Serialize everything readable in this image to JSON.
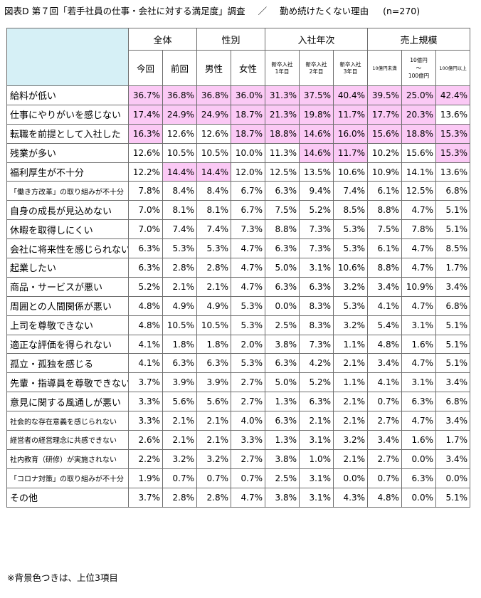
{
  "title": {
    "figure": "図表D",
    "survey": "第７回「若手社員の仕事・会社に対する満足度」調査",
    "separator": "／",
    "topic": "勤め続けたくない理由",
    "n": "(n=270)"
  },
  "groups": [
    "全体",
    "性別",
    "入社年次",
    "売上規模"
  ],
  "columns": [
    [
      "今回"
    ],
    [
      "前回"
    ],
    [
      "男性"
    ],
    [
      "女性"
    ],
    [
      "新卒入社",
      "1年目"
    ],
    [
      "新卒入社",
      "2年目"
    ],
    [
      "新卒入社",
      "3年目"
    ],
    [
      "10億円未満"
    ],
    [
      "10億円",
      "～",
      "100億円"
    ],
    [
      "100億円以上"
    ]
  ],
  "rows": [
    {
      "label": "給料が低い",
      "values": [
        "36.7%",
        "36.8%",
        "36.8%",
        "36.0%",
        "31.3%",
        "37.5%",
        "40.4%",
        "39.5%",
        "25.0%",
        "42.4%"
      ],
      "highlight": [
        1,
        1,
        1,
        1,
        1,
        1,
        1,
        1,
        1,
        1
      ]
    },
    {
      "label": "仕事にやりがいを感じない",
      "values": [
        "17.4%",
        "24.9%",
        "24.9%",
        "18.7%",
        "21.3%",
        "19.8%",
        "11.7%",
        "17.7%",
        "20.3%",
        "13.6%"
      ],
      "highlight": [
        1,
        1,
        1,
        1,
        1,
        1,
        1,
        1,
        1,
        0
      ]
    },
    {
      "label": "転職を前提として入社した",
      "values": [
        "16.3%",
        "12.6%",
        "12.6%",
        "18.7%",
        "18.8%",
        "14.6%",
        "16.0%",
        "15.6%",
        "18.8%",
        "15.3%"
      ],
      "highlight": [
        1,
        0,
        0,
        1,
        1,
        1,
        1,
        1,
        1,
        1
      ]
    },
    {
      "label": "残業が多い",
      "values": [
        "12.6%",
        "10.5%",
        "10.5%",
        "10.0%",
        "11.3%",
        "14.6%",
        "11.7%",
        "10.2%",
        "15.6%",
        "15.3%"
      ],
      "highlight": [
        0,
        0,
        0,
        0,
        0,
        1,
        1,
        0,
        0,
        1
      ]
    },
    {
      "label": "福利厚生が不十分",
      "values": [
        "12.2%",
        "14.4%",
        "14.4%",
        "12.0%",
        "12.5%",
        "13.5%",
        "10.6%",
        "10.9%",
        "14.1%",
        "13.6%"
      ],
      "highlight": [
        0,
        1,
        1,
        0,
        0,
        0,
        0,
        0,
        0,
        0
      ]
    },
    {
      "label": "「働き方改革」の取り組みが不十分",
      "small": true,
      "values": [
        "7.8%",
        "8.4%",
        "8.4%",
        "6.7%",
        "6.3%",
        "9.4%",
        "7.4%",
        "6.1%",
        "12.5%",
        "6.8%"
      ],
      "highlight": [
        0,
        0,
        0,
        0,
        0,
        0,
        0,
        0,
        0,
        0
      ]
    },
    {
      "label": "自身の成長が見込めない",
      "values": [
        "7.0%",
        "8.1%",
        "8.1%",
        "6.7%",
        "7.5%",
        "5.2%",
        "8.5%",
        "8.8%",
        "4.7%",
        "5.1%"
      ],
      "highlight": [
        0,
        0,
        0,
        0,
        0,
        0,
        0,
        0,
        0,
        0
      ]
    },
    {
      "label": "休暇を取得しにくい",
      "values": [
        "7.0%",
        "7.4%",
        "7.4%",
        "7.3%",
        "8.8%",
        "7.3%",
        "5.3%",
        "7.5%",
        "7.8%",
        "5.1%"
      ],
      "highlight": [
        0,
        0,
        0,
        0,
        0,
        0,
        0,
        0,
        0,
        0
      ]
    },
    {
      "label": "会社に将来性を感じられない",
      "values": [
        "6.3%",
        "5.3%",
        "5.3%",
        "4.7%",
        "6.3%",
        "7.3%",
        "5.3%",
        "6.1%",
        "4.7%",
        "8.5%"
      ],
      "highlight": [
        0,
        0,
        0,
        0,
        0,
        0,
        0,
        0,
        0,
        0
      ]
    },
    {
      "label": "起業したい",
      "values": [
        "6.3%",
        "2.8%",
        "2.8%",
        "4.7%",
        "5.0%",
        "3.1%",
        "10.6%",
        "8.8%",
        "4.7%",
        "1.7%"
      ],
      "highlight": [
        0,
        0,
        0,
        0,
        0,
        0,
        0,
        0,
        0,
        0
      ]
    },
    {
      "label": "商品・サービスが悪い",
      "values": [
        "5.2%",
        "2.1%",
        "2.1%",
        "4.7%",
        "6.3%",
        "6.3%",
        "3.2%",
        "3.4%",
        "10.9%",
        "3.4%"
      ],
      "highlight": [
        0,
        0,
        0,
        0,
        0,
        0,
        0,
        0,
        0,
        0
      ]
    },
    {
      "label": "周囲との人間関係が悪い",
      "values": [
        "4.8%",
        "4.9%",
        "4.9%",
        "5.3%",
        "0.0%",
        "8.3%",
        "5.3%",
        "4.1%",
        "4.7%",
        "6.8%"
      ],
      "highlight": [
        0,
        0,
        0,
        0,
        0,
        0,
        0,
        0,
        0,
        0
      ]
    },
    {
      "label": "上司を尊敬できない",
      "values": [
        "4.8%",
        "10.5%",
        "10.5%",
        "5.3%",
        "2.5%",
        "8.3%",
        "3.2%",
        "5.4%",
        "3.1%",
        "5.1%"
      ],
      "highlight": [
        0,
        0,
        0,
        0,
        0,
        0,
        0,
        0,
        0,
        0
      ]
    },
    {
      "label": "適正な評価を得られない",
      "values": [
        "4.1%",
        "1.8%",
        "1.8%",
        "2.0%",
        "3.8%",
        "7.3%",
        "1.1%",
        "4.8%",
        "1.6%",
        "5.1%"
      ],
      "highlight": [
        0,
        0,
        0,
        0,
        0,
        0,
        0,
        0,
        0,
        0
      ]
    },
    {
      "label": "孤立・孤独を感じる",
      "values": [
        "4.1%",
        "6.3%",
        "6.3%",
        "5.3%",
        "6.3%",
        "4.2%",
        "2.1%",
        "3.4%",
        "4.7%",
        "5.1%"
      ],
      "highlight": [
        0,
        0,
        0,
        0,
        0,
        0,
        0,
        0,
        0,
        0
      ]
    },
    {
      "label": "先輩・指導員を尊敬できない",
      "values": [
        "3.7%",
        "3.9%",
        "3.9%",
        "2.7%",
        "5.0%",
        "5.2%",
        "1.1%",
        "4.1%",
        "3.1%",
        "3.4%"
      ],
      "highlight": [
        0,
        0,
        0,
        0,
        0,
        0,
        0,
        0,
        0,
        0
      ]
    },
    {
      "label": "意見に関する風通しが悪い",
      "values": [
        "3.3%",
        "5.6%",
        "5.6%",
        "2.7%",
        "1.3%",
        "6.3%",
        "2.1%",
        "0.7%",
        "6.3%",
        "6.8%"
      ],
      "highlight": [
        0,
        0,
        0,
        0,
        0,
        0,
        0,
        0,
        0,
        0
      ]
    },
    {
      "label": "社会的な存在意義を感じられない",
      "small": true,
      "values": [
        "3.3%",
        "2.1%",
        "2.1%",
        "4.0%",
        "6.3%",
        "2.1%",
        "2.1%",
        "2.7%",
        "4.7%",
        "3.4%"
      ],
      "highlight": [
        0,
        0,
        0,
        0,
        0,
        0,
        0,
        0,
        0,
        0
      ]
    },
    {
      "label": "経営者の経営理念に共感できない",
      "small": true,
      "values": [
        "2.6%",
        "2.1%",
        "2.1%",
        "3.3%",
        "1.3%",
        "3.1%",
        "3.2%",
        "3.4%",
        "1.6%",
        "1.7%"
      ],
      "highlight": [
        0,
        0,
        0,
        0,
        0,
        0,
        0,
        0,
        0,
        0
      ]
    },
    {
      "label": "社内教育（研修）が実施されない",
      "small": true,
      "values": [
        "2.2%",
        "3.2%",
        "3.2%",
        "2.7%",
        "3.8%",
        "1.0%",
        "2.1%",
        "2.7%",
        "0.0%",
        "3.4%"
      ],
      "highlight": [
        0,
        0,
        0,
        0,
        0,
        0,
        0,
        0,
        0,
        0
      ]
    },
    {
      "label": "「コロナ対策」の取り組みが不十分",
      "small": true,
      "values": [
        "1.9%",
        "0.7%",
        "0.7%",
        "0.7%",
        "2.5%",
        "3.1%",
        "0.0%",
        "0.7%",
        "6.3%",
        "0.0%"
      ],
      "highlight": [
        0,
        0,
        0,
        0,
        0,
        0,
        0,
        0,
        0,
        0
      ]
    },
    {
      "label": "その他",
      "values": [
        "3.7%",
        "2.8%",
        "2.8%",
        "4.7%",
        "3.8%",
        "3.1%",
        "4.3%",
        "4.8%",
        "0.0%",
        "5.1%"
      ],
      "highlight": [
        0,
        0,
        0,
        0,
        0,
        0,
        0,
        0,
        0,
        0
      ]
    }
  ],
  "note": "※背景色つきは、上位3項目",
  "colors": {
    "highlight": "#fbc9f5",
    "header_blank": "#d6f0f6",
    "border": "#6e6e6e"
  }
}
